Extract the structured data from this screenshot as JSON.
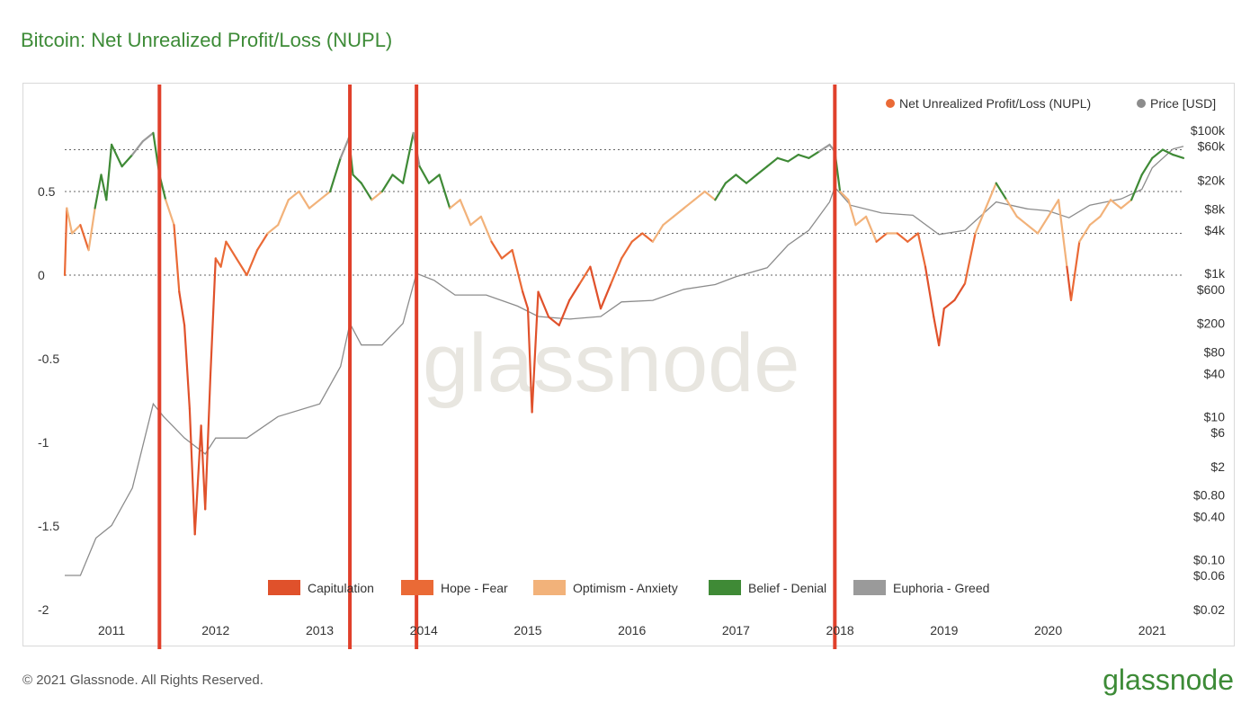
{
  "title": "Bitcoin: Net Unrealized Profit/Loss (NUPL)",
  "footer": "© 2021 Glassnode. All Rights Reserved.",
  "brand": "glassnode",
  "watermark": "glassnode",
  "colors": {
    "title": "#3d8b37",
    "capitulation": "#e0512b",
    "hope_fear": "#ea6a36",
    "optimism_anxiety": "#f2b27a",
    "belief_denial": "#3f8a36",
    "euphoria_greed": "#9a9a9a",
    "price": "#8c8c8c",
    "marker": "#e0402b"
  },
  "chart_data": {
    "type": "line",
    "title": "Bitcoin: Net Unrealized Profit/Loss (NUPL)",
    "x_ticks": [
      "2011",
      "2012",
      "2013",
      "2014",
      "2015",
      "2016",
      "2017",
      "2018",
      "2019",
      "2020",
      "2021"
    ],
    "x_range": [
      2010.55,
      2021.3
    ],
    "left_axis": {
      "ticks": [
        "0.5",
        "0",
        "-0.5",
        "-1",
        "-1.5",
        "-2"
      ],
      "tick_values": [
        0.5,
        0,
        -0.5,
        -1,
        -1.5,
        -2
      ],
      "ylim": [
        -2,
        1
      ]
    },
    "right_axis": {
      "scale": "log",
      "ticks": [
        "$100k",
        "$60k",
        "$20k",
        "$8k",
        "$4k",
        "$1k",
        "$600",
        "$200",
        "$80",
        "$40",
        "$10",
        "$6",
        "$2",
        "$0.80",
        "$0.40",
        "$0.10",
        "$0.06",
        "$0.02"
      ],
      "tick_values": [
        100000,
        60000,
        20000,
        8000,
        4000,
        1000,
        600,
        200,
        80,
        40,
        10,
        6,
        2,
        0.8,
        0.4,
        0.1,
        0.06,
        0.02
      ]
    },
    "zone_lines": [
      0,
      0.25,
      0.5,
      0.75
    ],
    "legend_top": [
      {
        "label": "Net Unrealized Profit/Loss (NUPL)",
        "color": "#ea6a36"
      },
      {
        "label": "Price [USD]",
        "color": "#8c8c8c"
      }
    ],
    "legend_bottom": [
      {
        "label": "Capitulation",
        "color": "#e0512b"
      },
      {
        "label": "Hope - Fear",
        "color": "#ea6a36"
      },
      {
        "label": "Optimism - Anxiety",
        "color": "#f2b27a"
      },
      {
        "label": "Belief - Denial",
        "color": "#3f8a36"
      },
      {
        "label": "Euphoria - Greed",
        "color": "#9a9a9a"
      }
    ],
    "vertical_markers": [
      2011.46,
      2013.29,
      2013.93,
      2017.95
    ],
    "series": [
      {
        "name": "Net Unrealized Profit/Loss (NUPL)",
        "points": [
          [
            2010.55,
            0.0
          ],
          [
            2010.57,
            0.4
          ],
          [
            2010.62,
            0.25
          ],
          [
            2010.7,
            0.3
          ],
          [
            2010.78,
            0.15
          ],
          [
            2010.84,
            0.4
          ],
          [
            2010.9,
            0.6
          ],
          [
            2010.95,
            0.45
          ],
          [
            2011.0,
            0.78
          ],
          [
            2011.1,
            0.65
          ],
          [
            2011.2,
            0.72
          ],
          [
            2011.3,
            0.8
          ],
          [
            2011.4,
            0.85
          ],
          [
            2011.46,
            0.6
          ],
          [
            2011.52,
            0.45
          ],
          [
            2011.6,
            0.3
          ],
          [
            2011.65,
            -0.1
          ],
          [
            2011.7,
            -0.3
          ],
          [
            2011.75,
            -0.8
          ],
          [
            2011.8,
            -1.55
          ],
          [
            2011.86,
            -0.9
          ],
          [
            2011.9,
            -1.4
          ],
          [
            2011.95,
            -0.6
          ],
          [
            2012.0,
            0.1
          ],
          [
            2012.05,
            0.05
          ],
          [
            2012.1,
            0.2
          ],
          [
            2012.2,
            0.1
          ],
          [
            2012.3,
            0.0
          ],
          [
            2012.4,
            0.15
          ],
          [
            2012.5,
            0.25
          ],
          [
            2012.6,
            0.3
          ],
          [
            2012.7,
            0.45
          ],
          [
            2012.8,
            0.5
          ],
          [
            2012.9,
            0.4
          ],
          [
            2013.0,
            0.45
          ],
          [
            2013.1,
            0.5
          ],
          [
            2013.2,
            0.7
          ],
          [
            2013.28,
            0.82
          ],
          [
            2013.32,
            0.6
          ],
          [
            2013.4,
            0.55
          ],
          [
            2013.5,
            0.45
          ],
          [
            2013.6,
            0.5
          ],
          [
            2013.7,
            0.6
          ],
          [
            2013.8,
            0.55
          ],
          [
            2013.9,
            0.85
          ],
          [
            2013.96,
            0.65
          ],
          [
            2014.05,
            0.55
          ],
          [
            2014.15,
            0.6
          ],
          [
            2014.25,
            0.4
          ],
          [
            2014.35,
            0.45
          ],
          [
            2014.45,
            0.3
          ],
          [
            2014.55,
            0.35
          ],
          [
            2014.65,
            0.2
          ],
          [
            2014.75,
            0.1
          ],
          [
            2014.85,
            0.15
          ],
          [
            2014.95,
            -0.1
          ],
          [
            2015.0,
            -0.2
          ],
          [
            2015.04,
            -0.82
          ],
          [
            2015.1,
            -0.1
          ],
          [
            2015.2,
            -0.25
          ],
          [
            2015.3,
            -0.3
          ],
          [
            2015.4,
            -0.15
          ],
          [
            2015.5,
            -0.05
          ],
          [
            2015.6,
            0.05
          ],
          [
            2015.7,
            -0.2
          ],
          [
            2015.8,
            -0.05
          ],
          [
            2015.9,
            0.1
          ],
          [
            2016.0,
            0.2
          ],
          [
            2016.1,
            0.25
          ],
          [
            2016.2,
            0.2
          ],
          [
            2016.3,
            0.3
          ],
          [
            2016.4,
            0.35
          ],
          [
            2016.5,
            0.4
          ],
          [
            2016.6,
            0.45
          ],
          [
            2016.7,
            0.5
          ],
          [
            2016.8,
            0.45
          ],
          [
            2016.9,
            0.55
          ],
          [
            2017.0,
            0.6
          ],
          [
            2017.1,
            0.55
          ],
          [
            2017.2,
            0.6
          ],
          [
            2017.3,
            0.65
          ],
          [
            2017.4,
            0.7
          ],
          [
            2017.5,
            0.68
          ],
          [
            2017.6,
            0.72
          ],
          [
            2017.7,
            0.7
          ],
          [
            2017.8,
            0.74
          ],
          [
            2017.9,
            0.78
          ],
          [
            2017.95,
            0.74
          ],
          [
            2018.0,
            0.5
          ],
          [
            2018.08,
            0.45
          ],
          [
            2018.15,
            0.3
          ],
          [
            2018.25,
            0.35
          ],
          [
            2018.35,
            0.2
          ],
          [
            2018.45,
            0.25
          ],
          [
            2018.55,
            0.25
          ],
          [
            2018.65,
            0.2
          ],
          [
            2018.75,
            0.25
          ],
          [
            2018.82,
            0.05
          ],
          [
            2018.9,
            -0.25
          ],
          [
            2018.95,
            -0.42
          ],
          [
            2019.0,
            -0.2
          ],
          [
            2019.1,
            -0.15
          ],
          [
            2019.2,
            -0.05
          ],
          [
            2019.3,
            0.25
          ],
          [
            2019.4,
            0.4
          ],
          [
            2019.5,
            0.55
          ],
          [
            2019.6,
            0.45
          ],
          [
            2019.7,
            0.35
          ],
          [
            2019.8,
            0.3
          ],
          [
            2019.9,
            0.25
          ],
          [
            2020.0,
            0.35
          ],
          [
            2020.1,
            0.45
          ],
          [
            2020.18,
            0.05
          ],
          [
            2020.22,
            -0.15
          ],
          [
            2020.3,
            0.2
          ],
          [
            2020.4,
            0.3
          ],
          [
            2020.5,
            0.35
          ],
          [
            2020.6,
            0.45
          ],
          [
            2020.7,
            0.4
          ],
          [
            2020.8,
            0.45
          ],
          [
            2020.9,
            0.6
          ],
          [
            2021.0,
            0.7
          ],
          [
            2021.1,
            0.75
          ],
          [
            2021.2,
            0.72
          ],
          [
            2021.3,
            0.7
          ]
        ]
      },
      {
        "name": "Price [USD]",
        "points": [
          [
            2010.55,
            0.06
          ],
          [
            2010.7,
            0.06
          ],
          [
            2010.85,
            0.2
          ],
          [
            2011.0,
            0.3
          ],
          [
            2011.2,
            1.0
          ],
          [
            2011.4,
            15
          ],
          [
            2011.5,
            10
          ],
          [
            2011.7,
            5
          ],
          [
            2011.9,
            3
          ],
          [
            2012.0,
            5
          ],
          [
            2012.3,
            5
          ],
          [
            2012.6,
            10
          ],
          [
            2013.0,
            15
          ],
          [
            2013.2,
            50
          ],
          [
            2013.29,
            200
          ],
          [
            2013.4,
            100
          ],
          [
            2013.6,
            100
          ],
          [
            2013.8,
            200
          ],
          [
            2013.93,
            1000
          ],
          [
            2014.1,
            800
          ],
          [
            2014.3,
            500
          ],
          [
            2014.6,
            500
          ],
          [
            2014.9,
            350
          ],
          [
            2015.1,
            250
          ],
          [
            2015.4,
            230
          ],
          [
            2015.7,
            250
          ],
          [
            2015.9,
            400
          ],
          [
            2016.2,
            420
          ],
          [
            2016.5,
            600
          ],
          [
            2016.8,
            700
          ],
          [
            2017.0,
            900
          ],
          [
            2017.3,
            1200
          ],
          [
            2017.5,
            2500
          ],
          [
            2017.7,
            4000
          ],
          [
            2017.9,
            10000
          ],
          [
            2017.95,
            16000
          ],
          [
            2018.1,
            9000
          ],
          [
            2018.4,
            7000
          ],
          [
            2018.7,
            6500
          ],
          [
            2018.95,
            3500
          ],
          [
            2019.2,
            4000
          ],
          [
            2019.5,
            10000
          ],
          [
            2019.8,
            8000
          ],
          [
            2020.0,
            7500
          ],
          [
            2020.2,
            6000
          ],
          [
            2020.4,
            9000
          ],
          [
            2020.7,
            11000
          ],
          [
            2020.9,
            15000
          ],
          [
            2021.0,
            30000
          ],
          [
            2021.2,
            55000
          ],
          [
            2021.3,
            60000
          ]
        ]
      }
    ]
  }
}
